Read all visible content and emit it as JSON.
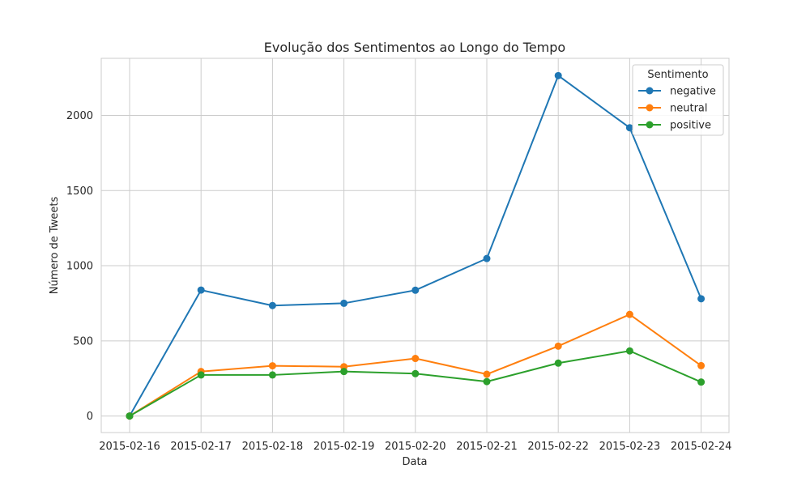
{
  "chart_data": {
    "type": "line",
    "title": "Evolução dos Sentimentos ao Longo do Tempo",
    "xlabel": "Data",
    "ylabel": "Número de Tweets",
    "x": [
      "2015-02-16",
      "2015-02-17",
      "2015-02-18",
      "2015-02-19",
      "2015-02-20",
      "2015-02-21",
      "2015-02-22",
      "2015-02-23",
      "2015-02-24"
    ],
    "ylim": [
      -110,
      2380
    ],
    "yticks": [
      0,
      500,
      1000,
      1500,
      2000
    ],
    "grid": true,
    "legend": {
      "title": "Sentimento",
      "placement": "top-right"
    },
    "series": [
      {
        "name": "negative",
        "color": "#1f77b4",
        "values": [
          0,
          838,
          735,
          750,
          837,
          1048,
          2265,
          1918,
          780
        ]
      },
      {
        "name": "neutral",
        "color": "#ff7f0e",
        "values": [
          0,
          296,
          334,
          328,
          383,
          278,
          465,
          676,
          335
        ]
      },
      {
        "name": "positive",
        "color": "#2ca02c",
        "values": [
          0,
          273,
          273,
          296,
          282,
          229,
          352,
          433,
          226
        ]
      }
    ]
  }
}
